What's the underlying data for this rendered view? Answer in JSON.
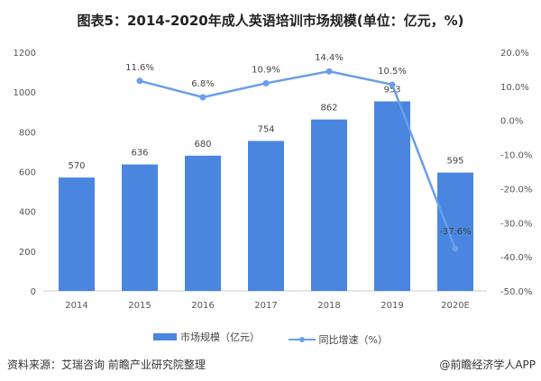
{
  "chart_data": {
    "type": "bar+line",
    "title": "图表5：2014-2020年成人英语培训市场规模(单位：亿元，%)",
    "categories": [
      "2014",
      "2015",
      "2016",
      "2017",
      "2018",
      "2019",
      "2020E"
    ],
    "series": [
      {
        "name": "市场规模（亿元）",
        "type": "bar",
        "axis": "left",
        "values": [
          570,
          636,
          680,
          754,
          862,
          953,
          595
        ],
        "labels": [
          "570",
          "636",
          "680",
          "754",
          "862",
          "953",
          "595"
        ],
        "color": "#4a86e0"
      },
      {
        "name": "同比增速（%）",
        "type": "line",
        "axis": "right",
        "values": [
          null,
          11.6,
          6.8,
          10.9,
          14.4,
          10.5,
          -37.6
        ],
        "labels": [
          "",
          "11.6%",
          "6.8%",
          "10.9%",
          "14.4%",
          "10.5%",
          "-37.6%"
        ],
        "color": "#6a9ee8"
      }
    ],
    "left_axis": {
      "ylim": [
        0,
        1200
      ],
      "ticks": [
        "0",
        "200",
        "400",
        "600",
        "800",
        "1000",
        "1200"
      ]
    },
    "right_axis": {
      "ylim": [
        -50,
        20
      ],
      "ticks": [
        "-50.0%",
        "-40.0%",
        "-30.0%",
        "-20.0%",
        "-10.0%",
        "0.0%",
        "10.0%",
        "20.0%"
      ]
    },
    "grid": false,
    "legend": "bottom"
  },
  "footer": {
    "source": "资料来源：艾瑞咨询 前瞻产业研究院整理",
    "credit": "@前瞻经济学人APP"
  }
}
